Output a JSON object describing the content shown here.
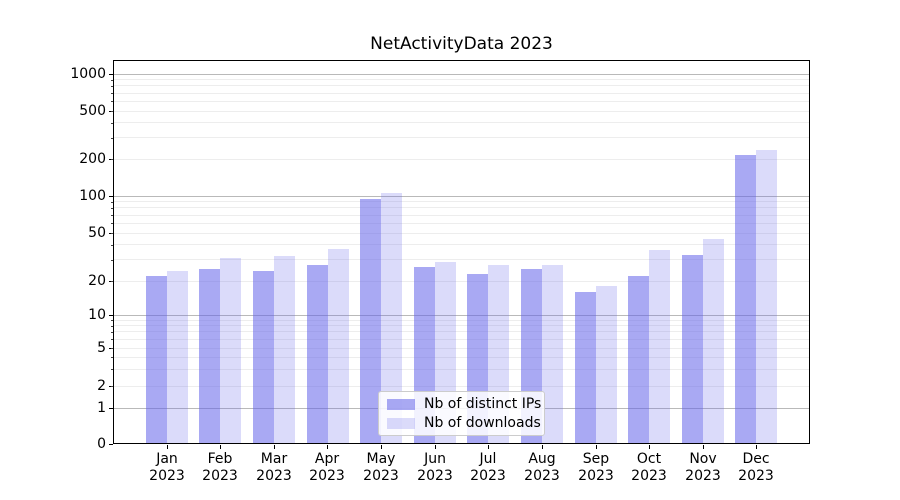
{
  "chart_data": {
    "type": "bar",
    "title": "NetActivityData 2023",
    "categories": [
      "Jan",
      "Feb",
      "Mar",
      "Apr",
      "May",
      "Jun",
      "Jul",
      "Aug",
      "Sep",
      "Oct",
      "Nov",
      "Dec"
    ],
    "category_year": "2023",
    "series": [
      {
        "name": "Nb of distinct IPs",
        "color": "rgba(99,99,233,0.55)",
        "values": [
          22,
          25,
          24,
          27,
          95,
          26,
          23,
          25,
          16,
          22,
          33,
          217
        ]
      },
      {
        "name": "Nb of downloads",
        "color": "rgba(99,99,233,0.23)",
        "values": [
          24,
          31,
          32,
          37,
          105,
          29,
          27,
          27,
          18,
          36,
          45,
          236
        ]
      }
    ],
    "xlabel": "",
    "ylabel": "",
    "y_axis": {
      "scale": "symlog",
      "tick_values": [
        0,
        1,
        2,
        5,
        10,
        20,
        50,
        100,
        200,
        500,
        1000
      ],
      "tick_labels": [
        "0",
        "1",
        "2",
        "5",
        "10",
        "20",
        "50",
        "100",
        "200",
        "500",
        "1000"
      ],
      "major_grid_values": [
        1,
        10,
        100,
        1000
      ],
      "minor_grid_values": [
        2,
        3,
        4,
        5,
        6,
        7,
        8,
        9,
        20,
        30,
        40,
        50,
        60,
        70,
        80,
        90,
        200,
        300,
        400,
        500,
        600,
        700,
        800,
        900
      ],
      "ylim_top": 1300
    },
    "legend": {
      "position": "lower center"
    },
    "grid": true,
    "colors": {
      "major_grid": "#b9b9b9",
      "minor_grid": "#ededed",
      "spine": "#000000",
      "background": "#ffffff",
      "bar_dark_rendered": "#a9a9f3",
      "bar_light_rendered": "#dbdbf9"
    }
  }
}
